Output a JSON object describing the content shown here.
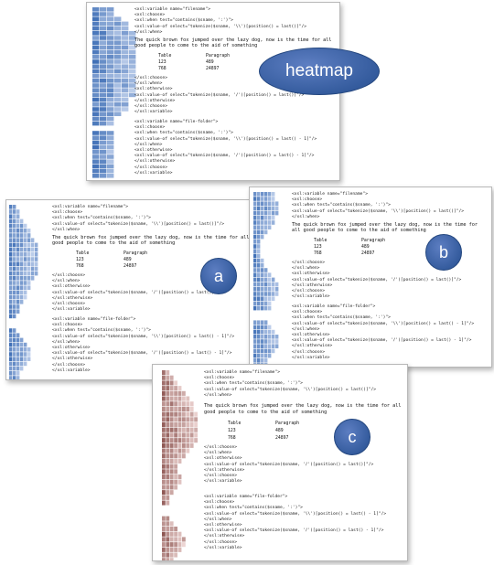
{
  "labels": {
    "heatmap": "heatmap",
    "a": "a",
    "b": "b",
    "c": "c"
  },
  "colors": {
    "blue_dark": "#3f6fb6",
    "blue_light": "#c5d4ee",
    "red_dark": "#8e5753",
    "red_light": "#efd7d5"
  },
  "code_block_1": [
    "<xsl:variable name=\"filename\">",
    "<xsl:choose>",
    "<xsl:when test=\"contains($sname, ':')\">",
    "<xsl:value-of select=\"tokenize($sname, '\\\\')[position() = last()]\"/>",
    "</xsl:when>"
  ],
  "prose": "The quick brown fox jumped over the lazy dog, now is the time for all good people to come to the aid of something",
  "table": {
    "h1": "Table",
    "h2": "Paragraph",
    "r1c1": "123",
    "r1c2": "489",
    "r2c1": "768",
    "r2c2": "24897"
  },
  "code_block_2": [
    "</xsl:choose>",
    "</xsl:when>",
    "<xsl:otherwise>",
    "<xsl:value-of select=\"tokenize($sname, '/')[position() = last()]\"/>",
    "</xsl:otherwise>",
    "</xsl:choose>",
    "</xsl:variable>"
  ],
  "code_block_3": [
    "<xsl:variable name=\"file-folder\">",
    "<xsl:choose>",
    "<xsl:when test=\"contains($sname, ':')\">",
    "<xsl:value-of select=\"tokenize($sname, '\\\\')[position() = last() - 1]\"/>",
    "</xsl:when>",
    "<xsl:otherwise>",
    "<xsl:value-of select=\"tokenize($sname, '/')[position() = last() - 1]\"/>",
    "</xsl:otherwise>",
    "</xsl:choose>",
    "</xsl:variable>"
  ]
}
